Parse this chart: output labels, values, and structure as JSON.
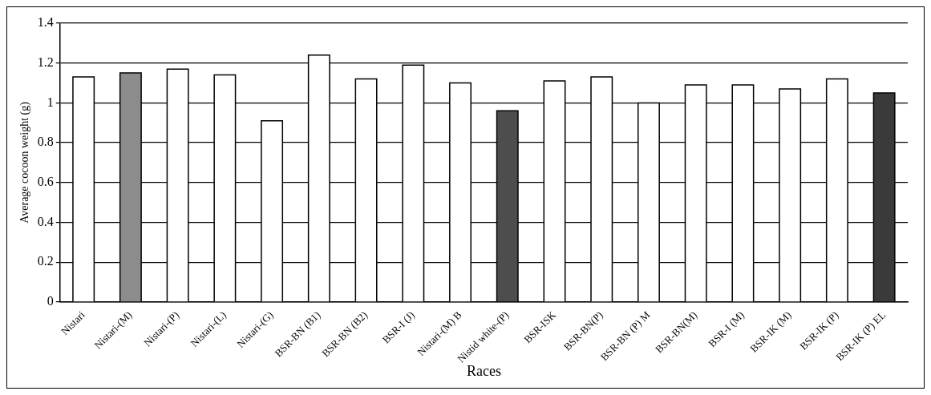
{
  "chart_data": {
    "type": "bar",
    "xlabel": "Races",
    "ylabel": "Average cocoon weight (g)",
    "categories": [
      "Nistari",
      "Nistari-(M)",
      "Nistari-(P)",
      "Nistari-(L)",
      "Nistari-(G)",
      "BSR-BN (B1)",
      "BSR-BN (B2)",
      "BSR-I (J)",
      "Nistari-(M) B",
      "Nistid white-(P)",
      "BSR-ISK",
      "BSR-BN(P)",
      "BSR-BN (P) M",
      "BSR-BN(M)",
      "BSR-I (M)",
      "BSR-IK (M)",
      "BSR-IK (P)",
      "BSR-IK (P) EL"
    ],
    "values": [
      1.13,
      1.15,
      1.17,
      1.14,
      0.91,
      1.24,
      1.12,
      1.19,
      1.1,
      0.96,
      1.11,
      1.13,
      1.0,
      1.09,
      1.09,
      1.07,
      1.12,
      1.05
    ],
    "colors": [
      "#ffffff",
      "#8c8c8c",
      "#ffffff",
      "#ffffff",
      "#ffffff",
      "#ffffff",
      "#ffffff",
      "#ffffff",
      "#ffffff",
      "#4d4d4d",
      "#ffffff",
      "#ffffff",
      "#ffffff",
      "#ffffff",
      "#ffffff",
      "#ffffff",
      "#ffffff",
      "#3a3a3a"
    ],
    "ylim": [
      0,
      1.4
    ],
    "yticks": [
      0,
      0.2,
      0.4,
      0.6,
      0.8,
      1,
      1.2,
      1.4
    ],
    "grid": "y"
  }
}
